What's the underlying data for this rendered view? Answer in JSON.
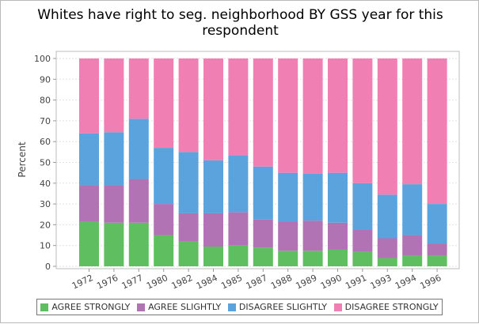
{
  "chart_data": {
    "type": "bar",
    "stacked": true,
    "title": "Whites have right to seg. neighborhood BY GSS year for this respondent",
    "xlabel": "",
    "ylabel": "Percent",
    "ylim": [
      0,
      100
    ],
    "yticks": [
      0,
      10,
      20,
      30,
      40,
      50,
      60,
      70,
      80,
      90,
      100
    ],
    "grid": true,
    "legend_position": "bottom",
    "categories": [
      "1972",
      "1976",
      "1977",
      "1980",
      "1982",
      "1984",
      "1985",
      "1987",
      "1988",
      "1989",
      "1990",
      "1991",
      "1993",
      "1994",
      "1996"
    ],
    "series": [
      {
        "name": "AGREE STRONGLY",
        "color": "#5fbf60",
        "values": [
          21.5,
          21,
          21,
          15,
          12,
          9.5,
          10,
          9,
          7.5,
          7.5,
          8,
          7,
          4,
          5,
          5
        ]
      },
      {
        "name": "AGREE SLIGHTLY",
        "color": "#b173b3",
        "values": [
          17.5,
          18,
          21,
          15,
          13.5,
          16,
          16,
          13.5,
          14,
          14.5,
          13,
          10.5,
          9.5,
          10,
          6
        ]
      },
      {
        "name": "DISAGREE SLIGHTLY",
        "color": "#5ba3dc",
        "values": [
          25,
          25.5,
          29,
          27,
          29.5,
          25.5,
          27.5,
          25.5,
          23.5,
          22.5,
          24,
          22.5,
          21,
          24.5,
          19
        ]
      },
      {
        "name": "DISAGREE STRONGLY",
        "color": "#f07fb3",
        "values": [
          36,
          35.5,
          29,
          43,
          45,
          49,
          46.5,
          52,
          55,
          55.5,
          55,
          60,
          65.5,
          60.5,
          70
        ]
      }
    ]
  }
}
